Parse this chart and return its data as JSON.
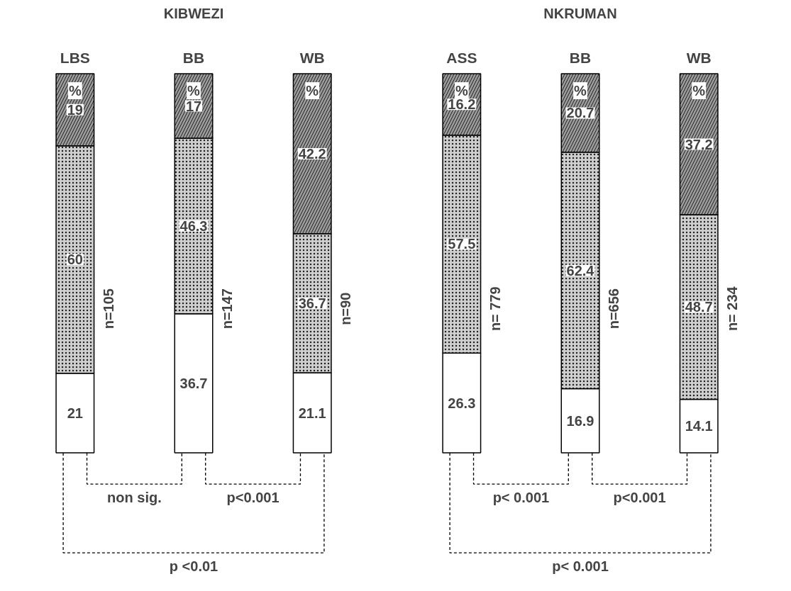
{
  "chart_data": [
    {
      "type": "bar",
      "title": "KIBWEZI",
      "categories": [
        "LBS",
        "BB",
        "WB"
      ],
      "stacked": true,
      "data_labels": true,
      "grid": false,
      "series": [
        {
          "color": "#ffffff",
          "values": [
            21,
            36.7,
            21.1
          ]
        },
        {
          "color": "#cfcfcf",
          "values": [
            60,
            46.3,
            36.7
          ]
        },
        {
          "color": "#9a9a9a",
          "values": [
            19,
            17,
            42.2
          ]
        }
      ],
      "annotations": [
        "%",
        "%",
        "%",
        "n=105",
        "n=147",
        "n=90",
        "non sig.",
        "p<0.001",
        "p <0.01"
      ]
    },
    {
      "type": "bar",
      "title": "NKRUMAN",
      "categories": [
        "ASS",
        "BB",
        "WB"
      ],
      "stacked": true,
      "data_labels": true,
      "grid": false,
      "series": [
        {
          "color": "#ffffff",
          "values": [
            26.3,
            16.9,
            14.1
          ]
        },
        {
          "color": "#cfcfcf",
          "values": [
            57.5,
            62.4,
            48.7
          ]
        },
        {
          "color": "#9a9a9a",
          "values": [
            16.2,
            20.7,
            37.2
          ]
        }
      ],
      "annotations": [
        "%",
        "%",
        "%",
        "n= 779",
        "n=656",
        "n= 234",
        "p< 0.001",
        "p<0.001",
        "p< 0.001"
      ]
    }
  ]
}
